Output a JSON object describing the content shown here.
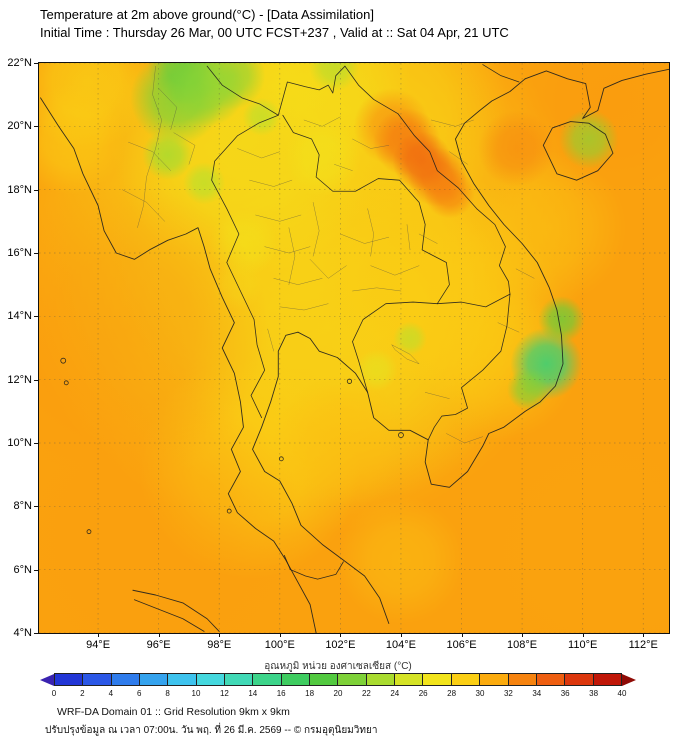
{
  "header": {
    "title": "Temperature at 2m above ground(°C) - [Data Assimilation]",
    "subtitle": "Initial Time : Thursday 26 Mar, 00 UTC FCST+237 , Valid at :: Sat 04 Apr, 21 UTC"
  },
  "axes": {
    "x_ticks": [
      {
        "value": 94,
        "label": "94°E"
      },
      {
        "value": 96,
        "label": "96°E"
      },
      {
        "value": 98,
        "label": "98°E"
      },
      {
        "value": 100,
        "label": "100°E"
      },
      {
        "value": 102,
        "label": "102°E"
      },
      {
        "value": 104,
        "label": "104°E"
      },
      {
        "value": 106,
        "label": "106°E"
      },
      {
        "value": 108,
        "label": "108°E"
      },
      {
        "value": 110,
        "label": "110°E"
      },
      {
        "value": 112,
        "label": "112°E"
      }
    ],
    "y_ticks": [
      {
        "value": 22,
        "label": "22°N"
      },
      {
        "value": 20,
        "label": "20°N"
      },
      {
        "value": 18,
        "label": "18°N"
      },
      {
        "value": 16,
        "label": "16°N"
      },
      {
        "value": 14,
        "label": "14°N"
      },
      {
        "value": 12,
        "label": "12°N"
      },
      {
        "value": 10,
        "label": "10°N"
      },
      {
        "value": 8,
        "label": "8°N"
      },
      {
        "value": 6,
        "label": "6°N"
      },
      {
        "value": 4,
        "label": "4°N"
      }
    ]
  },
  "colorbar": {
    "label": "อุณหภูมิ หน่วย องศาเซลเซียส (°C)",
    "tick_labels": [
      "0",
      "2",
      "4",
      "6",
      "8",
      "10",
      "12",
      "14",
      "16",
      "18",
      "20",
      "22",
      "24",
      "26",
      "28",
      "30",
      "32",
      "34",
      "36",
      "38",
      "40"
    ],
    "arrow_left_color": "#3A23B0",
    "arrow_right_color": "#8F0B06",
    "segment_colors": [
      "#2236D6",
      "#2B57E6",
      "#2F7CEC",
      "#35A3EE",
      "#3EC3EE",
      "#45D8DE",
      "#41D9B6",
      "#3CD48A",
      "#3ECC60",
      "#52C93F",
      "#7ED138",
      "#A9DB2F",
      "#D5E326",
      "#F2E41C",
      "#FBCF14",
      "#FBAB0E",
      "#F6830F",
      "#EE5E10",
      "#DC370D",
      "#C01708"
    ]
  },
  "footer": {
    "line1": "WRF-DA Domain 01 :: Grid Resolution 9km x 9km",
    "line2": "ปรับปรุงข้อมูล ณ เวลา 07:00น. วัน พฤ. ที่ 26 มี.ค. 2569 -- © กรมอุตุนิยมวิทยา"
  },
  "chart_data": {
    "type": "heatmap",
    "title": "Temperature at 2m above ground (°C), WRF-DA Domain 01, valid Sat 04 Apr 21 UTC",
    "units": "°C",
    "lon_range": [
      92.05,
      112.85
    ],
    "lat_range": [
      4,
      22
    ],
    "colorbar_range": [
      0,
      40
    ],
    "background_temp_c": 31.5,
    "features": [
      {
        "lon": 100.6,
        "lat": 16.2,
        "radius_deg": 6.8,
        "temp_c": 28.0,
        "intensity": 0.75
      },
      {
        "lon": 102.3,
        "lat": 13.4,
        "radius_deg": 4.0,
        "temp_c": 28.3,
        "intensity": 0.6
      },
      {
        "lon": 98.9,
        "lat": 19.6,
        "radius_deg": 3.2,
        "temp_c": 27.5,
        "intensity": 0.7
      },
      {
        "lon": 103.6,
        "lat": 20.6,
        "radius_deg": 2.8,
        "temp_c": 28.5,
        "intensity": 0.6
      },
      {
        "lon": 101.5,
        "lat": 21.5,
        "radius_deg": 2.0,
        "temp_c": 27.5,
        "intensity": 0.6
      },
      {
        "lon": 100.3,
        "lat": 21.8,
        "radius_deg": 1.2,
        "temp_c": 27.8,
        "intensity": 0.6
      },
      {
        "lon": 99.0,
        "lat": 9.2,
        "radius_deg": 2.6,
        "temp_c": 28.8,
        "intensity": 0.65
      },
      {
        "lon": 93.6,
        "lat": 21.4,
        "radius_deg": 1.6,
        "temp_c": 28.5,
        "intensity": 0.7
      },
      {
        "lon": 93.1,
        "lat": 19.6,
        "radius_deg": 1.3,
        "temp_c": 29.0,
        "intensity": 0.6
      },
      {
        "lon": 104.8,
        "lat": 15.3,
        "radius_deg": 2.6,
        "temp_c": 29.3,
        "intensity": 0.5
      },
      {
        "lon": 106.3,
        "lat": 14.2,
        "radius_deg": 2.2,
        "temp_c": 29.2,
        "intensity": 0.5
      },
      {
        "lon": 104.0,
        "lat": 6.3,
        "radius_deg": 1.5,
        "temp_c": 29.5,
        "intensity": 0.45
      },
      {
        "lon": 108.9,
        "lat": 16.8,
        "radius_deg": 1.8,
        "temp_c": 29.4,
        "intensity": 0.45
      },
      {
        "lon": 107.3,
        "lat": 12.5,
        "radius_deg": 1.8,
        "temp_c": 29.2,
        "intensity": 0.5
      },
      {
        "lon": 102.0,
        "lat": 10.0,
        "radius_deg": 1.6,
        "temp_c": 30.0,
        "intensity": 0.5
      },
      {
        "lon": 98.8,
        "lat": 16.3,
        "radius_deg": 0.8,
        "temp_c": 27.2,
        "intensity": 0.55
      },
      {
        "lon": 98.6,
        "lat": 15.0,
        "radius_deg": 0.6,
        "temp_c": 27.6,
        "intensity": 0.5
      },
      {
        "lon": 101.4,
        "lat": 19.0,
        "radius_deg": 0.9,
        "temp_c": 27.0,
        "intensity": 0.55
      },
      {
        "lon": 94.8,
        "lat": 13.5,
        "radius_deg": 3.5,
        "temp_c": 31.9,
        "intensity": 0.5
      },
      {
        "lon": 96.0,
        "lat": 7.0,
        "radius_deg": 3.5,
        "temp_c": 31.6,
        "intensity": 0.5
      },
      {
        "lon": 111.0,
        "lat": 20.8,
        "radius_deg": 2.2,
        "temp_c": 31.9,
        "intensity": 0.5
      },
      {
        "lon": 110.8,
        "lat": 6.5,
        "radius_deg": 3.0,
        "temp_c": 31.4,
        "intensity": 0.45
      },
      {
        "lon": 103.7,
        "lat": 20.0,
        "radius_deg": 0.9,
        "temp_c": 32.5,
        "intensity": 0.7
      },
      {
        "lon": 104.2,
        "lat": 19.5,
        "radius_deg": 0.8,
        "temp_c": 33.5,
        "intensity": 0.8
      },
      {
        "lon": 104.7,
        "lat": 18.9,
        "radius_deg": 0.7,
        "temp_c": 34.4,
        "intensity": 0.85
      },
      {
        "lon": 105.2,
        "lat": 18.4,
        "radius_deg": 0.7,
        "temp_c": 33.9,
        "intensity": 0.85
      },
      {
        "lon": 105.6,
        "lat": 17.9,
        "radius_deg": 0.6,
        "temp_c": 33.0,
        "intensity": 0.8
      },
      {
        "lon": 107.8,
        "lat": 19.3,
        "radius_deg": 0.9,
        "temp_c": 32.8,
        "intensity": 0.6
      },
      {
        "lon": 96.6,
        "lat": 20.9,
        "radius_deg": 1.1,
        "temp_c": 21.0,
        "intensity": 0.85
      },
      {
        "lon": 96.9,
        "lat": 21.9,
        "radius_deg": 0.9,
        "temp_c": 20.0,
        "intensity": 0.85
      },
      {
        "lon": 97.6,
        "lat": 21.2,
        "radius_deg": 0.9,
        "temp_c": 21.5,
        "intensity": 0.8
      },
      {
        "lon": 96.3,
        "lat": 19.1,
        "radius_deg": 0.6,
        "temp_c": 23.0,
        "intensity": 0.85
      },
      {
        "lon": 97.5,
        "lat": 18.2,
        "radius_deg": 0.5,
        "temp_c": 24.0,
        "intensity": 0.8
      },
      {
        "lon": 98.4,
        "lat": 21.6,
        "radius_deg": 0.8,
        "temp_c": 22.0,
        "intensity": 0.8
      },
      {
        "lon": 99.4,
        "lat": 20.3,
        "radius_deg": 0.45,
        "temp_c": 24.0,
        "intensity": 0.75
      },
      {
        "lon": 101.8,
        "lat": 21.9,
        "radius_deg": 0.6,
        "temp_c": 23.5,
        "intensity": 0.7
      },
      {
        "lon": 108.8,
        "lat": 12.5,
        "radius_deg": 0.85,
        "temp_c": 16.0,
        "intensity": 0.9
      },
      {
        "lon": 109.3,
        "lat": 13.9,
        "radius_deg": 0.55,
        "temp_c": 20.0,
        "intensity": 0.8
      },
      {
        "lon": 108.2,
        "lat": 11.7,
        "radius_deg": 0.5,
        "temp_c": 21.0,
        "intensity": 0.75
      },
      {
        "lon": 110.2,
        "lat": 19.6,
        "radius_deg": 0.7,
        "temp_c": 21.5,
        "intensity": 0.7
      },
      {
        "lon": 104.3,
        "lat": 13.3,
        "radius_deg": 0.4,
        "temp_c": 24.0,
        "intensity": 0.7
      },
      {
        "lon": 103.2,
        "lat": 12.3,
        "radius_deg": 0.5,
        "temp_c": 26.0,
        "intensity": 0.6
      }
    ]
  }
}
